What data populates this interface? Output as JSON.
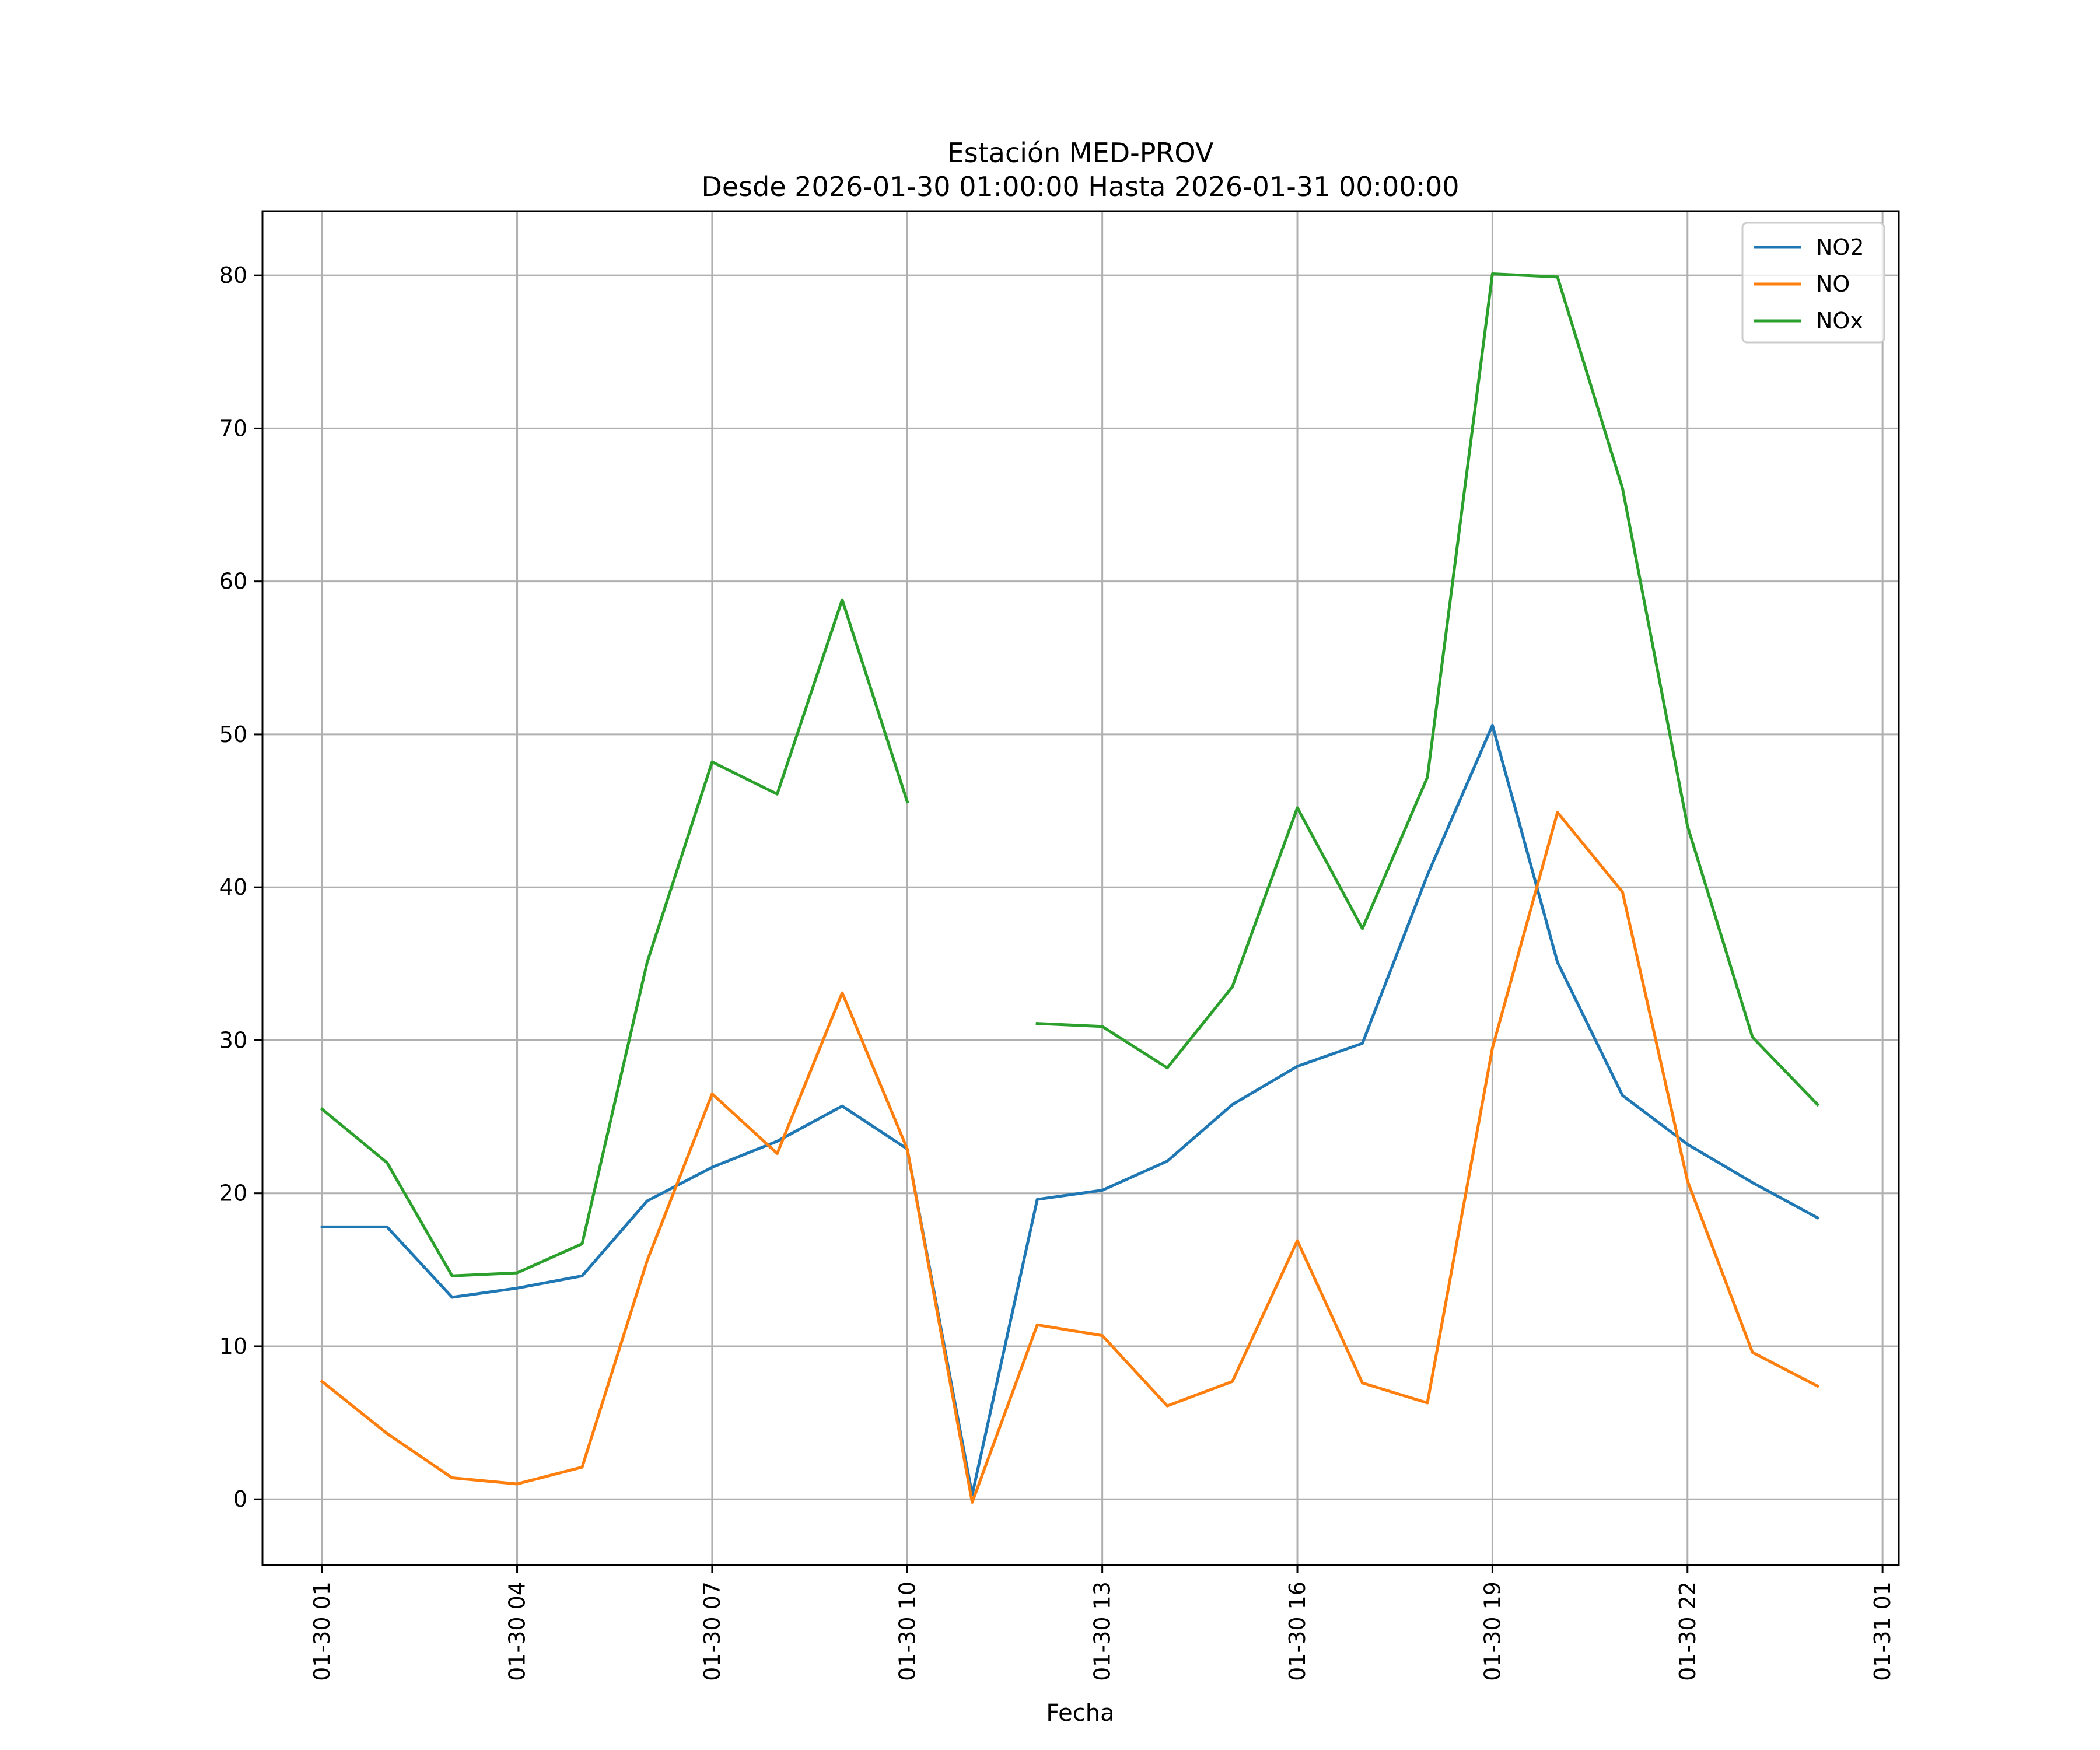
{
  "chart_data": {
    "type": "line",
    "title": "Estación MED-PROV",
    "subtitle": "Desde 2026-01-30 01:00:00 Hasta 2026-01-31 00:00:00",
    "xlabel": "Fecha",
    "ylabel": "",
    "x": [
      "01-30 01",
      "01-30 02",
      "01-30 03",
      "01-30 04",
      "01-30 05",
      "01-30 06",
      "01-30 07",
      "01-30 08",
      "01-30 09",
      "01-30 10",
      "01-30 11",
      "01-30 12",
      "01-30 13",
      "01-30 14",
      "01-30 15",
      "01-30 16",
      "01-30 17",
      "01-30 18",
      "01-30 19",
      "01-30 20",
      "01-30 21",
      "01-30 22",
      "01-30 23",
      "01-31 00"
    ],
    "x_ticks": [
      "01-30 01",
      "01-30 04",
      "01-30 07",
      "01-30 10",
      "01-30 13",
      "01-30 16",
      "01-30 19",
      "01-30 22",
      "01-31 01"
    ],
    "x_range": [
      "01-30 00:05",
      "01-31 01:15"
    ],
    "y_ticks": [
      0,
      10,
      20,
      30,
      40,
      50,
      60,
      70,
      80
    ],
    "ylim": [
      -4.3,
      84.2
    ],
    "grid": true,
    "legend_position": "top-right",
    "series": [
      {
        "name": "NO2",
        "color": "#1f77b4",
        "values": [
          17.8,
          17.8,
          13.2,
          13.8,
          14.6,
          19.5,
          21.7,
          23.4,
          25.7,
          22.9,
          0.3,
          19.6,
          20.2,
          22.1,
          25.8,
          28.3,
          29.8,
          40.8,
          50.6,
          35.1,
          26.4,
          23.2,
          20.7,
          18.4
        ]
      },
      {
        "name": "NO",
        "color": "#ff7f0e",
        "values": [
          7.7,
          4.3,
          1.4,
          1.0,
          2.1,
          15.6,
          26.5,
          22.6,
          33.1,
          22.9,
          -0.2,
          11.4,
          10.7,
          6.1,
          7.7,
          16.9,
          7.6,
          6.3,
          29.5,
          44.9,
          39.7,
          20.8,
          9.6,
          7.4
        ]
      },
      {
        "name": "NOx",
        "color": "#2ca02c",
        "values": [
          25.5,
          22.0,
          14.6,
          14.8,
          16.7,
          35.1,
          48.2,
          46.1,
          58.8,
          45.6,
          null,
          31.1,
          30.9,
          28.2,
          33.5,
          45.2,
          37.3,
          47.2,
          80.1,
          79.9,
          66.1,
          44.0,
          30.2,
          25.8
        ]
      }
    ]
  }
}
